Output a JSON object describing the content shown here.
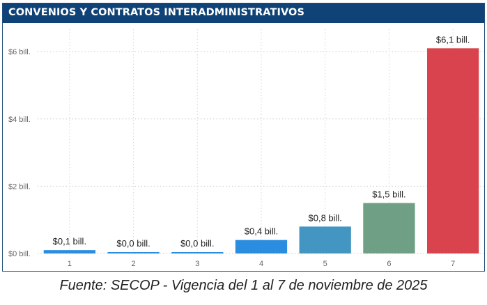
{
  "header": {
    "title": "CONVENIOS Y CONTRATOS INTERADMINISTRATIVOS"
  },
  "caption": "Fuente: SECOP - Vigencia del 1 al 7 de noviembre de 2025",
  "chart_data": {
    "type": "bar",
    "title": "CONVENIOS Y CONTRATOS INTERADMINISTRATIVOS",
    "xlabel": "",
    "ylabel": "",
    "categories": [
      "1",
      "2",
      "3",
      "4",
      "5",
      "6",
      "7"
    ],
    "values": [
      0.1,
      0.02,
      0.02,
      0.4,
      0.8,
      1.5,
      6.1
    ],
    "data_labels": [
      "$0,1 bill.",
      "$0,0 bill.",
      "$0,0 bill.",
      "$0,4 bill.",
      "$0,8 bill.",
      "$1,5 bill.",
      "$6,1 bill."
    ],
    "colors": [
      "#2b8de0",
      "#2b8de0",
      "#2b8de0",
      "#2b8de0",
      "#4496c2",
      "#6fa085",
      "#d9434e"
    ],
    "ylim": [
      0,
      6.5
    ],
    "yticks": [
      0,
      2,
      4,
      6
    ],
    "ytick_labels": [
      "$0 bill.",
      "$2 bill.",
      "$4 bill.",
      "$6 bill."
    ],
    "grid": true,
    "legend": "none"
  }
}
